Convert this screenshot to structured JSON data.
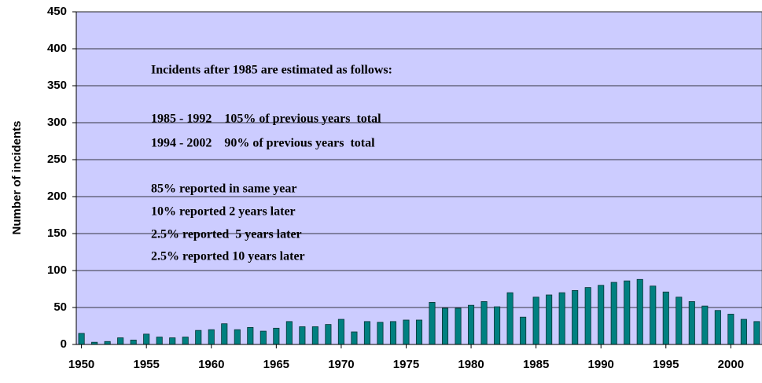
{
  "chart_data": {
    "type": "bar",
    "y_label": "Number of incidents",
    "annotations": [
      "Incidents after 1985 are estimated as follows:",
      "1985 - 1992    105% of previous years  total",
      "1994 - 2002    90% of previous years  total",
      "85% reported in same year",
      "10% reported 2 years later",
      "2.5% reported  5 years later",
      "2.5% reported 10 years later"
    ],
    "x": [
      1950,
      1951,
      1952,
      1953,
      1954,
      1955,
      1956,
      1957,
      1958,
      1959,
      1960,
      1961,
      1962,
      1963,
      1964,
      1965,
      1966,
      1967,
      1968,
      1969,
      1970,
      1971,
      1972,
      1973,
      1974,
      1975,
      1976,
      1977,
      1978,
      1979,
      1980,
      1981,
      1982,
      1983,
      1984,
      1985,
      1986,
      1987,
      1988,
      1989,
      1990,
      1991,
      1992,
      1993,
      1994,
      1995,
      1996,
      1997,
      1998,
      1999,
      2000,
      2001,
      2002
    ],
    "values": [
      15,
      3,
      4,
      9,
      6,
      14,
      10,
      9,
      10,
      19,
      20,
      28,
      20,
      23,
      18,
      22,
      31,
      24,
      24,
      27,
      34,
      17,
      31,
      30,
      31,
      33,
      33,
      57,
      49,
      49,
      53,
      58,
      51,
      70,
      37,
      64,
      67,
      70,
      73,
      77,
      80,
      84,
      86,
      88,
      79,
      71,
      64,
      58,
      52,
      46,
      41,
      34,
      31
    ],
    "color": "#008080",
    "background": "#ccccff",
    "xlim": [
      1949.6,
      2002.4
    ],
    "xticks": [
      1950,
      1955,
      1960,
      1965,
      1970,
      1975,
      1980,
      1985,
      1990,
      1995,
      2000
    ],
    "ylim": [
      0,
      450
    ],
    "yticks": [
      0,
      50,
      100,
      150,
      200,
      250,
      300,
      350,
      400,
      450
    ],
    "grid": true
  }
}
